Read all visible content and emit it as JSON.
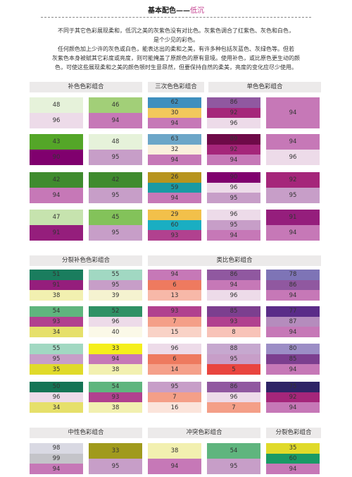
{
  "title": {
    "main": "基本配色——",
    "accent": "低沉"
  },
  "intro": [
    "不同于其它色彩展现柔和，低沉之美的灰紫色没有对比色。灰紫色调合了红紫色、灰色和白色，",
    "是个少见的彩色。",
    "任何颜色加上少许的灰色或白色，能表达出的柔和之美，有许多种包括灰蓝色、灰绿色等。但若",
    "灰紫色本身被赋其它彩度或亮度，则可能掩盖了原颜色的原有意境。使用补色，或比原色更生动的颜",
    "色，可使这些展现柔和之美的颜色顿时生意昂然，但要保持自然的柔美，亮度的变化应尽少使用。"
  ],
  "sections": [
    "补色色彩组合",
    "三次色色彩组合",
    "单色色彩组合",
    "分裂补色色彩组合",
    "类比色彩组合",
    "中性色彩组合",
    "冲突色彩组合",
    "分裂色彩组合"
  ],
  "swatches": [
    [
      {
        "v": "48",
        "c": "#e6f2da"
      },
      {
        "v": "96",
        "c": "#eddbe9"
      }
    ],
    [
      {
        "v": "46",
        "c": "#a2cf78"
      },
      {
        "v": "94",
        "c": "#c678b7"
      }
    ],
    [
      {
        "v": "62",
        "c": "#3f8fbe"
      },
      {
        "v": "30",
        "c": "#f2c85c"
      },
      {
        "v": "94",
        "c": "#c678b7"
      }
    ],
    [
      {
        "v": "86",
        "c": "#9058a0"
      },
      {
        "v": "92",
        "c": "#a5267a"
      },
      {
        "v": "96",
        "c": "#eddbe9"
      }
    ],
    [
      {
        "v": "94",
        "c": "#c678b7"
      }
    ],
    [
      {
        "v": "43",
        "c": "#54a628"
      },
      {
        "v": "90",
        "c": "#80006e"
      }
    ],
    [
      {
        "v": "48",
        "c": "#e6f2da"
      },
      {
        "v": "95",
        "c": "#c79ec8"
      }
    ],
    [
      {
        "v": "63",
        "c": "#6ca6c8"
      },
      {
        "v": "32",
        "c": "#faf0dc"
      },
      {
        "v": "94",
        "c": "#c678b7"
      }
    ],
    [
      {
        "v": "89",
        "c": "#6e0a48"
      },
      {
        "v": "92",
        "c": "#a5267a"
      },
      {
        "v": "94",
        "c": "#c678b7"
      }
    ],
    [
      {
        "v": "94",
        "c": "#c678b7"
      },
      {
        "v": "96",
        "c": "#eddbe9"
      }
    ],
    [
      {
        "v": "42",
        "c": "#3f8b2e"
      },
      {
        "v": "94",
        "c": "#c678b7"
      }
    ],
    [
      {
        "v": "42",
        "c": "#3f8b2e"
      },
      {
        "v": "95",
        "c": "#c79ec8"
      }
    ],
    [
      {
        "v": "26",
        "c": "#b7941e"
      },
      {
        "v": "59",
        "c": "#1a9aa4"
      },
      {
        "v": "94",
        "c": "#c678b7"
      }
    ],
    [
      {
        "v": "90",
        "c": "#80006e"
      },
      {
        "v": "96",
        "c": "#eddbe9"
      },
      {
        "v": "95",
        "c": "#c79ec8"
      }
    ],
    [
      {
        "v": "92",
        "c": "#a5267a"
      },
      {
        "v": "95",
        "c": "#c79ec8"
      }
    ],
    [
      {
        "v": "47",
        "c": "#c6e3ae"
      },
      {
        "v": "91",
        "c": "#951e7c"
      }
    ],
    [
      {
        "v": "45",
        "c": "#83c25a"
      },
      {
        "v": "95",
        "c": "#c79ec8"
      }
    ],
    [
      {
        "v": "29",
        "c": "#f2c04a"
      },
      {
        "v": "60",
        "c": "#1aaec2"
      },
      {
        "v": "93",
        "c": "#b1418f"
      }
    ],
    [
      {
        "v": "96",
        "c": "#eddbe9"
      },
      {
        "v": "95",
        "c": "#c79ec8"
      },
      {
        "v": "94",
        "c": "#c678b7"
      }
    ],
    [
      {
        "v": "91",
        "c": "#951e7c"
      },
      {
        "v": "94",
        "c": "#c678b7"
      }
    ],
    [
      {
        "v": "51",
        "c": "#1a7d5e"
      },
      {
        "v": "91",
        "c": "#951e7c"
      },
      {
        "v": "38",
        "c": "#f2f0b0"
      }
    ],
    [
      {
        "v": "55",
        "c": "#a1d8c2"
      },
      {
        "v": "95",
        "c": "#c79ec8"
      },
      {
        "v": "39",
        "c": "#f5f3d0"
      }
    ],
    [
      {
        "v": "94",
        "c": "#c678b7"
      },
      {
        "v": "6",
        "c": "#ee7a5f"
      },
      {
        "v": "13",
        "c": "#f7b8a8"
      }
    ],
    [
      {
        "v": "86",
        "c": "#9058a0"
      },
      {
        "v": "94",
        "c": "#c678b7"
      },
      {
        "v": "96",
        "c": "#eddbe9"
      }
    ],
    [
      {
        "v": "78",
        "c": "#7e74b6"
      },
      {
        "v": "86",
        "c": "#9058a0"
      },
      {
        "v": "94",
        "c": "#c678b7"
      }
    ],
    [
      {
        "v": "54",
        "c": "#5fb57e"
      },
      {
        "v": "93",
        "c": "#b1418f"
      },
      {
        "v": "34",
        "c": "#e6e06a"
      }
    ],
    [
      {
        "v": "52",
        "c": "#2f9165"
      },
      {
        "v": "96",
        "c": "#eddbe9"
      },
      {
        "v": "40",
        "c": "#fbf9e8"
      }
    ],
    [
      {
        "v": "93",
        "c": "#b1418f"
      },
      {
        "v": "7",
        "c": "#f49f88"
      },
      {
        "v": "15",
        "c": "#f9d2c6"
      }
    ],
    [
      {
        "v": "85",
        "c": "#7c3f8f"
      },
      {
        "v": "93",
        "c": "#b1418f"
      },
      {
        "v": "8",
        "c": "#f8c3b8"
      }
    ],
    [
      {
        "v": "77",
        "c": "#5a2c88"
      },
      {
        "v": "87",
        "c": "#b58cbd"
      },
      {
        "v": "94",
        "c": "#c678b7"
      }
    ],
    [
      {
        "v": "55",
        "c": "#a1d8c2"
      },
      {
        "v": "95",
        "c": "#c79ec8"
      },
      {
        "v": "35",
        "c": "#e0da2a"
      }
    ],
    [
      {
        "v": "33",
        "c": "#f5ef1c"
      },
      {
        "v": "94",
        "c": "#c678b7"
      },
      {
        "v": "38",
        "c": "#f2f0b0"
      }
    ],
    [
      {
        "v": "96",
        "c": "#eddbe9"
      },
      {
        "v": "6",
        "c": "#ee7a5f"
      },
      {
        "v": "14",
        "c": "#f5a08a"
      }
    ],
    [
      {
        "v": "88",
        "c": "#c6a8cf"
      },
      {
        "v": "95",
        "c": "#c79ec8"
      },
      {
        "v": "5",
        "c": "#e9453f"
      }
    ],
    [
      {
        "v": "80",
        "c": "#9c8ec6"
      },
      {
        "v": "85",
        "c": "#7c3f8f"
      },
      {
        "v": "94",
        "c": "#c678b7"
      }
    ],
    [
      {
        "v": "50",
        "c": "#157455"
      },
      {
        "v": "96",
        "c": "#eddbe9"
      },
      {
        "v": "34",
        "c": "#e6e06a"
      }
    ],
    [
      {
        "v": "54",
        "c": "#5fb57e"
      },
      {
        "v": "93",
        "c": "#b1418f"
      },
      {
        "v": "38",
        "c": "#f2f0b0"
      }
    ],
    [
      {
        "v": "95",
        "c": "#c79ec8"
      },
      {
        "v": "7",
        "c": "#f49f88"
      },
      {
        "v": "16",
        "c": "#fbe4db"
      }
    ],
    [
      {
        "v": "86",
        "c": "#9058a0"
      },
      {
        "v": "96",
        "c": "#eddbe9"
      },
      {
        "v": "7",
        "c": "#f49f88"
      }
    ],
    [
      {
        "v": "75",
        "c": "#2e2466"
      },
      {
        "v": "92",
        "c": "#a5267a"
      },
      {
        "v": "94",
        "c": "#c678b7"
      }
    ],
    [
      {
        "v": "98",
        "c": "#d9d9e3"
      },
      {
        "v": "99",
        "c": "#c4c4c9"
      },
      {
        "v": "94",
        "c": "#c678b7"
      }
    ],
    [
      {
        "v": "33",
        "c": "#a09a1c"
      },
      {
        "v": "95",
        "c": "#c79ec8"
      }
    ],
    [
      {
        "v": "38",
        "c": "#f2f0b0"
      },
      {
        "v": "94",
        "c": "#c678b7"
      }
    ],
    [
      {
        "v": "54",
        "c": "#5fb57e"
      },
      {
        "v": "95",
        "c": "#c79ec8"
      }
    ],
    [
      {
        "v": "35",
        "c": "#e0da2a"
      },
      {
        "v": "60",
        "c": "#1a9a66"
      },
      {
        "v": "94",
        "c": "#c678b7"
      }
    ]
  ]
}
